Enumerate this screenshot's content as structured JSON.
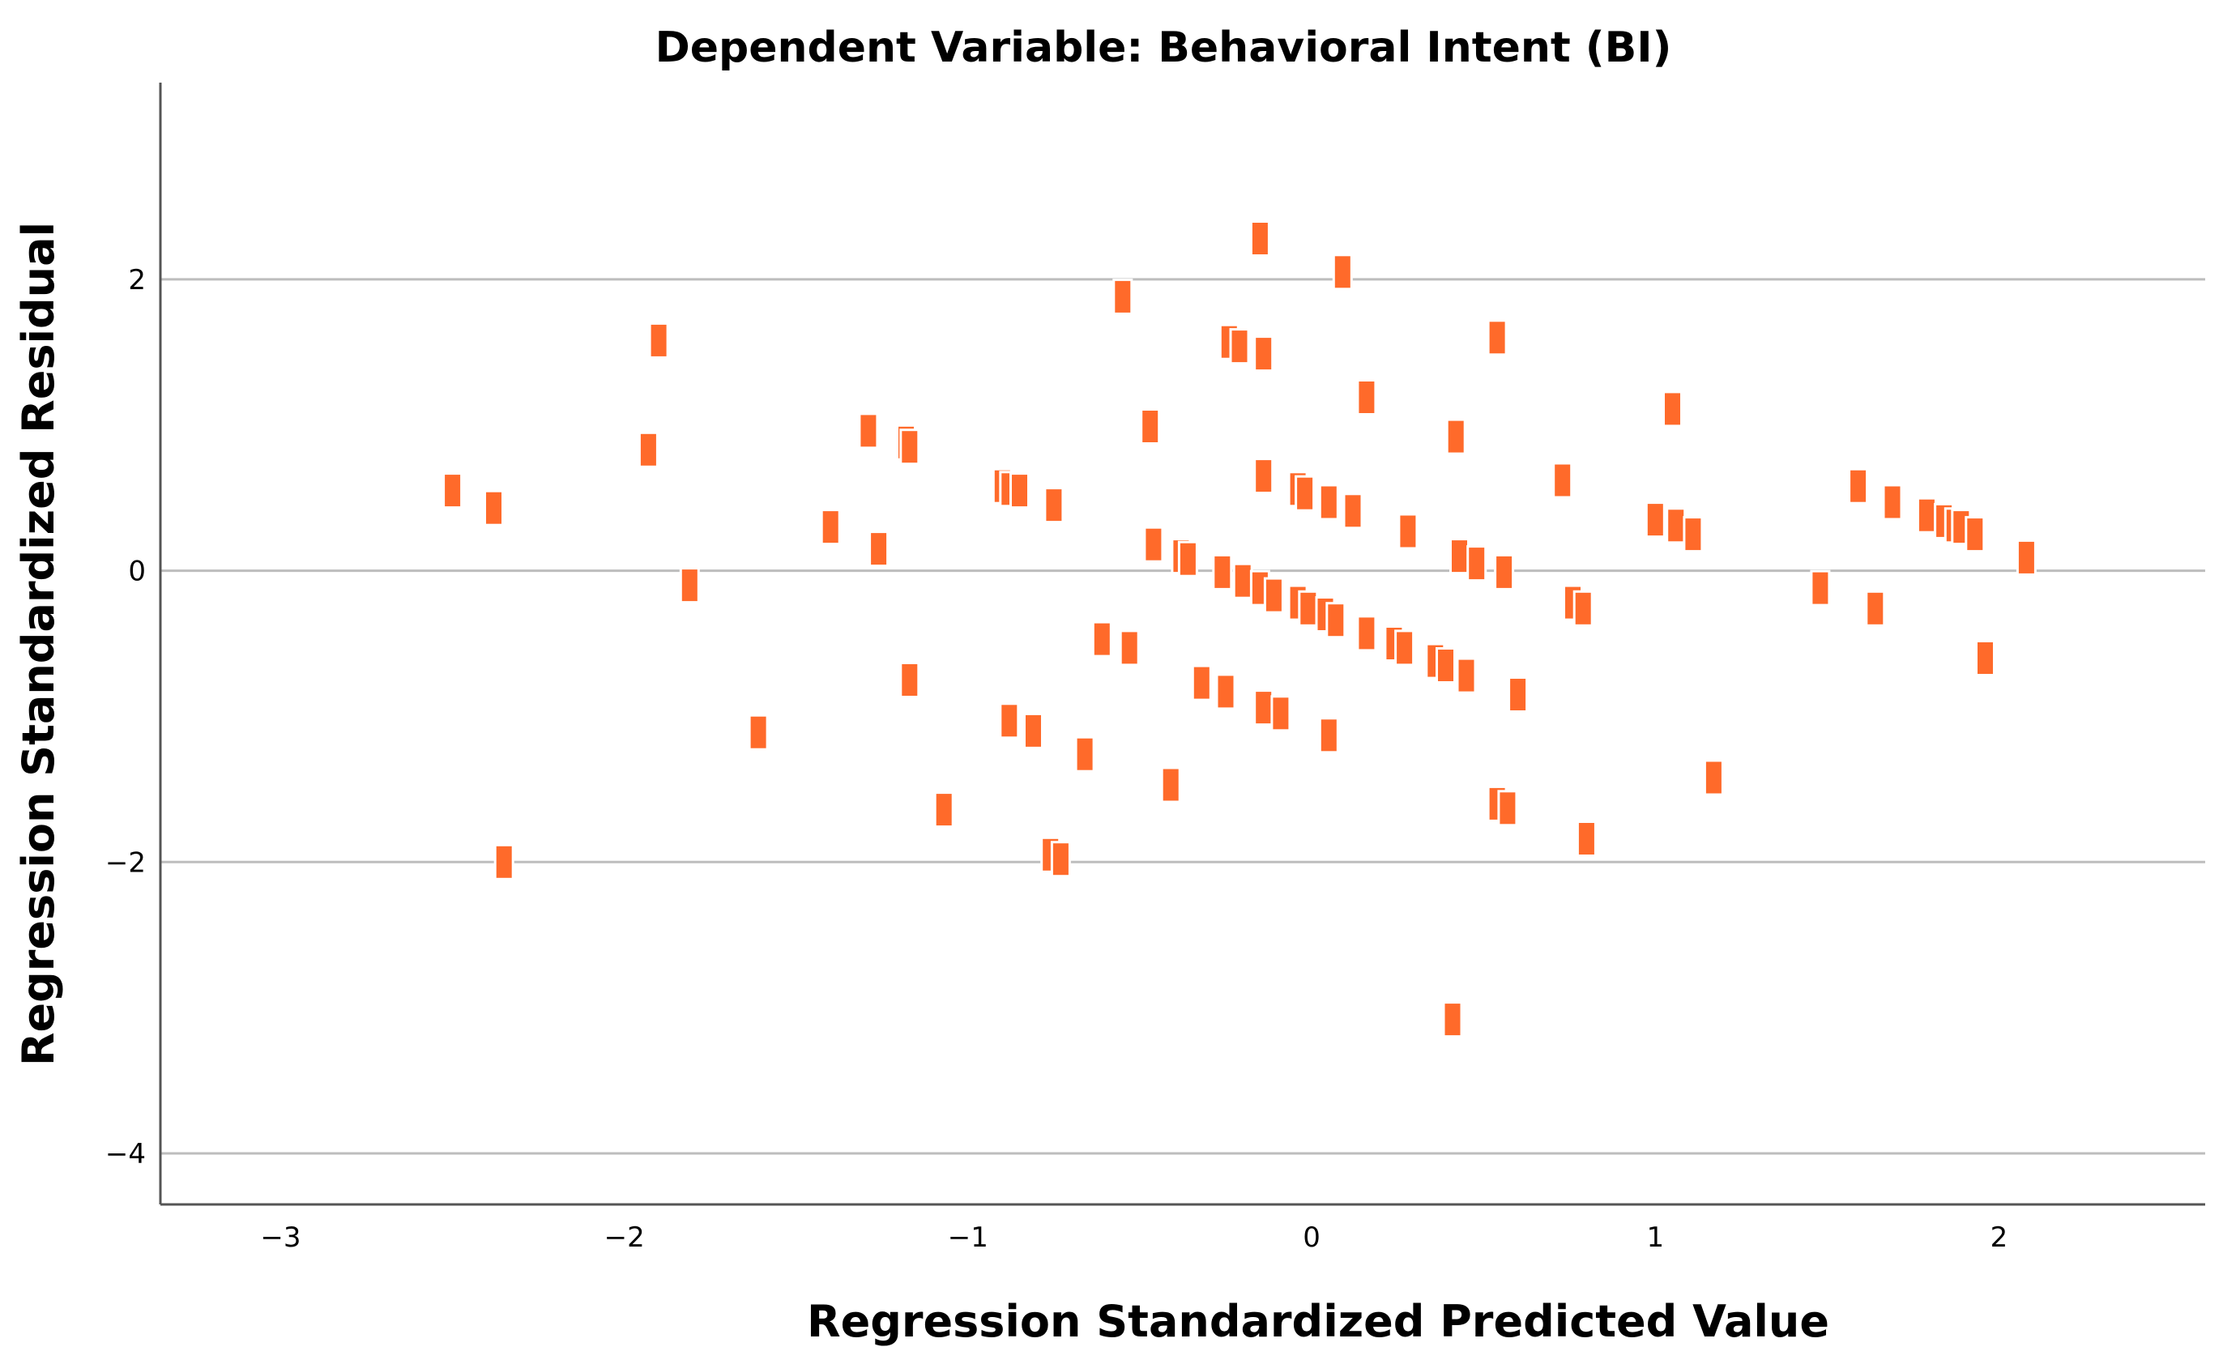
{
  "chart_data": {
    "type": "scatter",
    "title": "Dependent Variable: Behavioral Intent (BI)",
    "xlabel": "Regression Standardized Predicted Value",
    "ylabel": "Regression Standardized Residual",
    "xlim": [
      -3.35,
      2.6
    ],
    "ylim": [
      -4.35,
      3.35
    ],
    "x_ticks": [
      {
        "value": -3,
        "label": "−3"
      },
      {
        "value": -2,
        "label": "−2"
      },
      {
        "value": -1,
        "label": "−1"
      },
      {
        "value": 0,
        "label": "0"
      },
      {
        "value": 1,
        "label": "1"
      },
      {
        "value": 2,
        "label": "2"
      }
    ],
    "y_ticks": [
      {
        "value": 2,
        "label": "2"
      },
      {
        "value": 0,
        "label": "0"
      },
      {
        "value": -2,
        "label": "−2"
      },
      {
        "value": -4,
        "label": "−4"
      }
    ],
    "grid": "horizontal",
    "marker_color": "#ff6a2a",
    "grid_color": "#bdbdbd",
    "points": [
      {
        "x": -2.5,
        "y": 0.55
      },
      {
        "x": -2.38,
        "y": 0.43
      },
      {
        "x": -2.35,
        "y": -2.0
      },
      {
        "x": -1.93,
        "y": 0.83
      },
      {
        "x": -1.9,
        "y": 1.58
      },
      {
        "x": -1.81,
        "y": -0.1
      },
      {
        "x": -1.61,
        "y": -1.11
      },
      {
        "x": -1.4,
        "y": 0.3
      },
      {
        "x": -1.29,
        "y": 0.96
      },
      {
        "x": -1.26,
        "y": 0.15
      },
      {
        "x": -1.18,
        "y": 0.88
      },
      {
        "x": -1.17,
        "y": 0.85
      },
      {
        "x": -1.17,
        "y": -0.75
      },
      {
        "x": -1.07,
        "y": -1.64
      },
      {
        "x": -0.9,
        "y": 0.58
      },
      {
        "x": -0.88,
        "y": 0.56
      },
      {
        "x": -0.85,
        "y": 0.55
      },
      {
        "x": -0.88,
        "y": -1.03
      },
      {
        "x": -0.81,
        "y": -1.1
      },
      {
        "x": -0.75,
        "y": 0.45
      },
      {
        "x": -0.76,
        "y": -1.95
      },
      {
        "x": -0.73,
        "y": -1.98
      },
      {
        "x": -0.66,
        "y": -1.26
      },
      {
        "x": -0.61,
        "y": -0.47
      },
      {
        "x": -0.55,
        "y": 1.88
      },
      {
        "x": -0.53,
        "y": -0.53
      },
      {
        "x": -0.47,
        "y": 0.99
      },
      {
        "x": -0.46,
        "y": 0.18
      },
      {
        "x": -0.41,
        "y": -1.47
      },
      {
        "x": -0.38,
        "y": 0.1
      },
      {
        "x": -0.36,
        "y": 0.08
      },
      {
        "x": -0.32,
        "y": -0.77
      },
      {
        "x": -0.26,
        "y": -0.01
      },
      {
        "x": -0.24,
        "y": 1.57
      },
      {
        "x": -0.21,
        "y": 1.54
      },
      {
        "x": -0.25,
        "y": -0.83
      },
      {
        "x": -0.2,
        "y": -0.07
      },
      {
        "x": -0.15,
        "y": 2.28
      },
      {
        "x": -0.14,
        "y": 1.49
      },
      {
        "x": -0.14,
        "y": 0.65
      },
      {
        "x": -0.15,
        "y": -0.12
      },
      {
        "x": -0.14,
        "y": -0.94
      },
      {
        "x": -0.11,
        "y": -0.17
      },
      {
        "x": -0.09,
        "y": -0.98
      },
      {
        "x": -0.04,
        "y": 0.56
      },
      {
        "x": -0.02,
        "y": 0.53
      },
      {
        "x": -0.04,
        "y": -0.22
      },
      {
        "x": -0.01,
        "y": -0.26
      },
      {
        "x": 0.05,
        "y": 0.47
      },
      {
        "x": 0.04,
        "y": -0.3
      },
      {
        "x": 0.07,
        "y": -0.34
      },
      {
        "x": 0.05,
        "y": -1.13
      },
      {
        "x": 0.09,
        "y": 2.05
      },
      {
        "x": 0.12,
        "y": 0.41
      },
      {
        "x": 0.16,
        "y": 1.19
      },
      {
        "x": 0.16,
        "y": -0.43
      },
      {
        "x": 0.24,
        "y": -0.5
      },
      {
        "x": 0.27,
        "y": -0.53
      },
      {
        "x": 0.28,
        "y": 0.27
      },
      {
        "x": 0.36,
        "y": -0.62
      },
      {
        "x": 0.39,
        "y": -0.65
      },
      {
        "x": 0.41,
        "y": -3.08
      },
      {
        "x": 0.42,
        "y": 0.92
      },
      {
        "x": 0.43,
        "y": 0.1
      },
      {
        "x": 0.45,
        "y": -0.72
      },
      {
        "x": 0.48,
        "y": 0.05
      },
      {
        "x": 0.54,
        "y": 1.6
      },
      {
        "x": 0.54,
        "y": -1.6
      },
      {
        "x": 0.56,
        "y": -0.01
      },
      {
        "x": 0.57,
        "y": -1.63
      },
      {
        "x": 0.6,
        "y": -0.85
      },
      {
        "x": 0.73,
        "y": 0.62
      },
      {
        "x": 0.76,
        "y": -0.22
      },
      {
        "x": 0.79,
        "y": -0.26
      },
      {
        "x": 0.8,
        "y": -1.84
      },
      {
        "x": 1.0,
        "y": 0.35
      },
      {
        "x": 1.05,
        "y": 1.11
      },
      {
        "x": 1.06,
        "y": 0.31
      },
      {
        "x": 1.11,
        "y": 0.25
      },
      {
        "x": 1.17,
        "y": -1.42
      },
      {
        "x": 1.48,
        "y": -0.12
      },
      {
        "x": 1.59,
        "y": 0.58
      },
      {
        "x": 1.64,
        "y": -0.26
      },
      {
        "x": 1.69,
        "y": 0.47
      },
      {
        "x": 1.79,
        "y": 0.38
      },
      {
        "x": 1.84,
        "y": 0.34
      },
      {
        "x": 1.87,
        "y": 0.31
      },
      {
        "x": 1.89,
        "y": 0.3
      },
      {
        "x": 1.93,
        "y": 0.25
      },
      {
        "x": 1.96,
        "y": -0.6
      },
      {
        "x": 2.08,
        "y": 0.09
      }
    ]
  }
}
